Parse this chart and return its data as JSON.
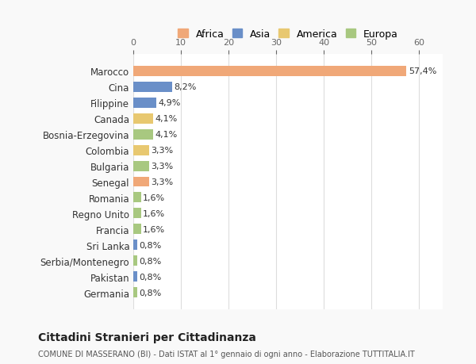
{
  "categories": [
    "Marocco",
    "Cina",
    "Filippine",
    "Canada",
    "Bosnia-Erzegovina",
    "Colombia",
    "Bulgaria",
    "Senegal",
    "Romania",
    "Regno Unito",
    "Francia",
    "Sri Lanka",
    "Serbia/Montenegro",
    "Pakistan",
    "Germania"
  ],
  "values": [
    57.4,
    8.2,
    4.9,
    4.1,
    4.1,
    3.3,
    3.3,
    3.3,
    1.6,
    1.6,
    1.6,
    0.8,
    0.8,
    0.8,
    0.8
  ],
  "labels": [
    "57,4%",
    "8,2%",
    "4,9%",
    "4,1%",
    "4,1%",
    "3,3%",
    "3,3%",
    "3,3%",
    "1,6%",
    "1,6%",
    "1,6%",
    "0,8%",
    "0,8%",
    "0,8%",
    "0,8%"
  ],
  "continents": [
    "Africa",
    "Asia",
    "Asia",
    "America",
    "Europa",
    "America",
    "Europa",
    "Africa",
    "Europa",
    "Europa",
    "Europa",
    "Asia",
    "Europa",
    "Asia",
    "Europa"
  ],
  "continent_colors": {
    "Africa": "#F0A878",
    "Asia": "#6A8FC8",
    "America": "#E8C870",
    "Europa": "#A8C880"
  },
  "legend_order": [
    "Africa",
    "Asia",
    "America",
    "Europa"
  ],
  "title_main": "Cittadini Stranieri per Cittadinanza",
  "title_sub": "COMUNE DI MASSERANO (BI) - Dati ISTAT al 1° gennaio di ogni anno - Elaborazione TUTTITALIA.IT",
  "xlim": [
    0,
    65
  ],
  "xticks": [
    0,
    10,
    20,
    30,
    40,
    50,
    60
  ],
  "background_color": "#f9f9f9",
  "bar_background": "#ffffff",
  "grid_color": "#dddddd"
}
